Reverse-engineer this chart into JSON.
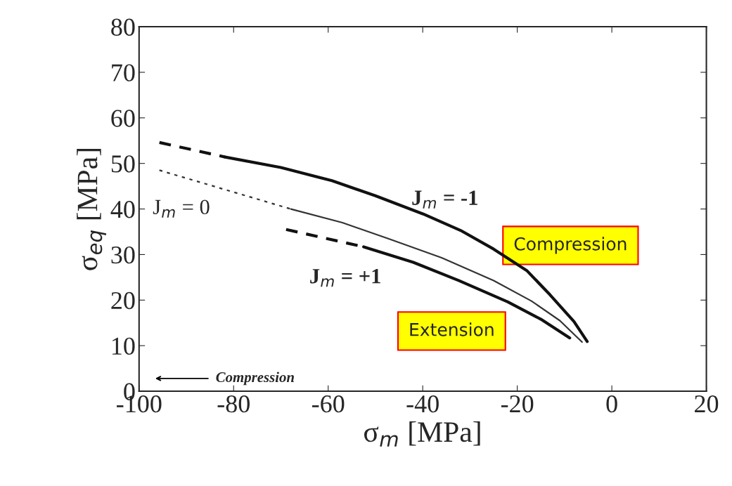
{
  "chart_data": {
    "type": "line",
    "xlabel": "σ$_{m}$ [MPa]",
    "ylabel": "σ$_{eq}$ [MPa]",
    "xlim": [
      -100,
      20
    ],
    "ylim": [
      0,
      80
    ],
    "xticks": [
      -100,
      -80,
      -60,
      -40,
      -20,
      0,
      20
    ],
    "yticks": [
      0,
      10,
      20,
      30,
      40,
      50,
      60,
      70,
      80
    ],
    "series": [
      {
        "color": "#111111",
        "line_style": "dashed",
        "x": [
          -95.7,
          -81.8
        ],
        "values": [
          54.6,
          51.4
        ]
      },
      {
        "color": "#111111",
        "line_style": "solid",
        "x": [
          -81.8,
          -70,
          -59.2,
          -50,
          -39.9,
          -32,
          -25,
          -18,
          -13.1,
          -8,
          -5.2
        ],
        "values": [
          51.4,
          49.1,
          46.2,
          42.9,
          38.9,
          35.3,
          31.2,
          26.5,
          21.2,
          15.3,
          10.9
        ]
      },
      {
        "color": "#333333",
        "line_style": "dotted",
        "x": [
          -95.7,
          -67.9
        ],
        "values": [
          48.5,
          40.0
        ]
      },
      {
        "color": "#333333",
        "line_style": "solid",
        "x": [
          -67.9,
          -57,
          -47.3,
          -36,
          -25,
          -17,
          -11,
          -6.3
        ],
        "values": [
          40.0,
          37.0,
          33.5,
          29.3,
          24.3,
          19.8,
          15.5,
          10.8
        ]
      },
      {
        "color": "#111111",
        "line_style": "dashed",
        "x": [
          -68.9,
          -52.5
        ],
        "values": [
          35.5,
          31.7
        ]
      },
      {
        "color": "#111111",
        "line_style": "solid",
        "x": [
          -52.5,
          -42,
          -32.4,
          -22,
          -15,
          -8.9
        ],
        "values": [
          31.7,
          28.3,
          24.3,
          19.6,
          15.8,
          11.7
        ]
      }
    ],
    "annotations": [
      "J$_{m}$ = -1",
      "J$_{m}$ = 0",
      "J$_{m}$ = +1",
      "Compression",
      "Extension",
      "Compression"
    ],
    "legend": false,
    "grid": false
  }
}
